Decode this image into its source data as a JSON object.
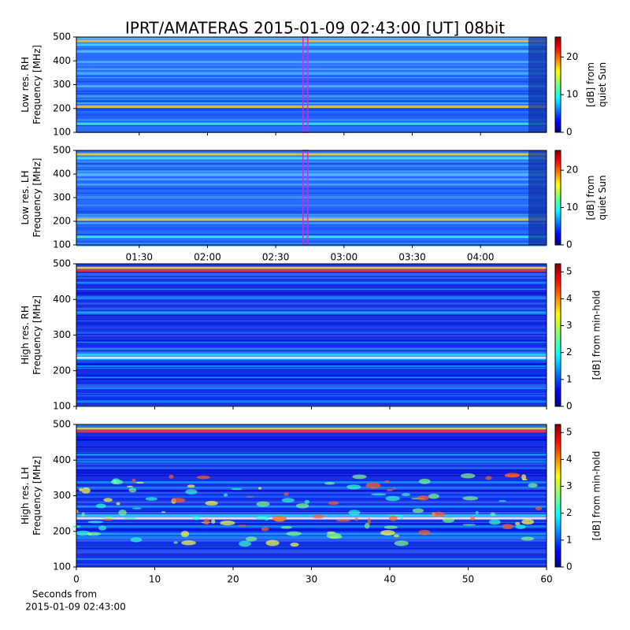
{
  "chart_data": [
    {
      "type": "heatmap",
      "title": "IPRT/AMATERAS 2015-01-09 02:43:00 [UT]   08bit",
      "ylabel": [
        "Low res. RH",
        "Frequency [MHz]"
      ],
      "ylim": [
        100,
        500
      ],
      "yticks": [
        100,
        200,
        300,
        400,
        500
      ],
      "xlim": [
        62.4,
        269
      ],
      "xticks": [
        90,
        120,
        150,
        180,
        210,
        240
      ],
      "tick_labels": false,
      "marker_x": 163,
      "marker_color": "#c030e0",
      "colorbar_label": [
        "[dB] from",
        "quiet Sun"
      ],
      "clim": [
        0,
        25.3
      ],
      "cticks": [
        0,
        10,
        20
      ]
    },
    {
      "type": "heatmap",
      "ylabel": [
        "Low res. LH",
        "Frequency [MHz]"
      ],
      "ylim": [
        100,
        500
      ],
      "yticks": [
        100,
        200,
        300,
        400,
        500
      ],
      "xlim": [
        62.4,
        269
      ],
      "xticks": [
        {
          "value": 90,
          "label": "01:30"
        },
        {
          "value": 120,
          "label": "02:00"
        },
        {
          "value": 150,
          "label": "02:30"
        },
        {
          "value": 180,
          "label": "03:00"
        },
        {
          "value": 210,
          "label": "03:30"
        },
        {
          "value": 240,
          "label": "04:00"
        }
      ],
      "marker_x": 163,
      "marker_color": "#c030e0",
      "colorbar_label": [
        "[dB] from",
        "quiet Sun"
      ],
      "clim": [
        0,
        25.3
      ],
      "cticks": [
        0,
        10,
        20
      ]
    },
    {
      "type": "heatmap",
      "ylabel": [
        "High res. RH",
        "Frequency [MHz]"
      ],
      "ylim": [
        100,
        500
      ],
      "yticks": [
        100,
        200,
        300,
        400,
        500
      ],
      "xlim": [
        0,
        60
      ],
      "xticks": [
        0,
        10,
        20,
        30,
        40,
        50,
        60
      ],
      "tick_labels": false,
      "colorbar_label": [
        "[dB] from min-hold"
      ],
      "clim": [
        0,
        5.3
      ],
      "cticks": [
        0,
        1,
        2,
        3,
        4,
        5
      ]
    },
    {
      "type": "heatmap",
      "ylabel": [
        "High res. LH",
        "Frequency [MHz]"
      ],
      "ylim": [
        100,
        500
      ],
      "yticks": [
        100,
        200,
        300,
        400,
        500
      ],
      "xlim": [
        0,
        60
      ],
      "xticks": [
        0,
        10,
        20,
        30,
        40,
        50,
        60
      ],
      "xlabel": [
        "Seconds from",
        "2015-01-09 02:43:00"
      ],
      "colorbar_label": [
        "[dB] from min-hold"
      ],
      "clim": [
        0,
        5.3
      ],
      "cticks": [
        0,
        1,
        2,
        3,
        4,
        5
      ]
    }
  ]
}
